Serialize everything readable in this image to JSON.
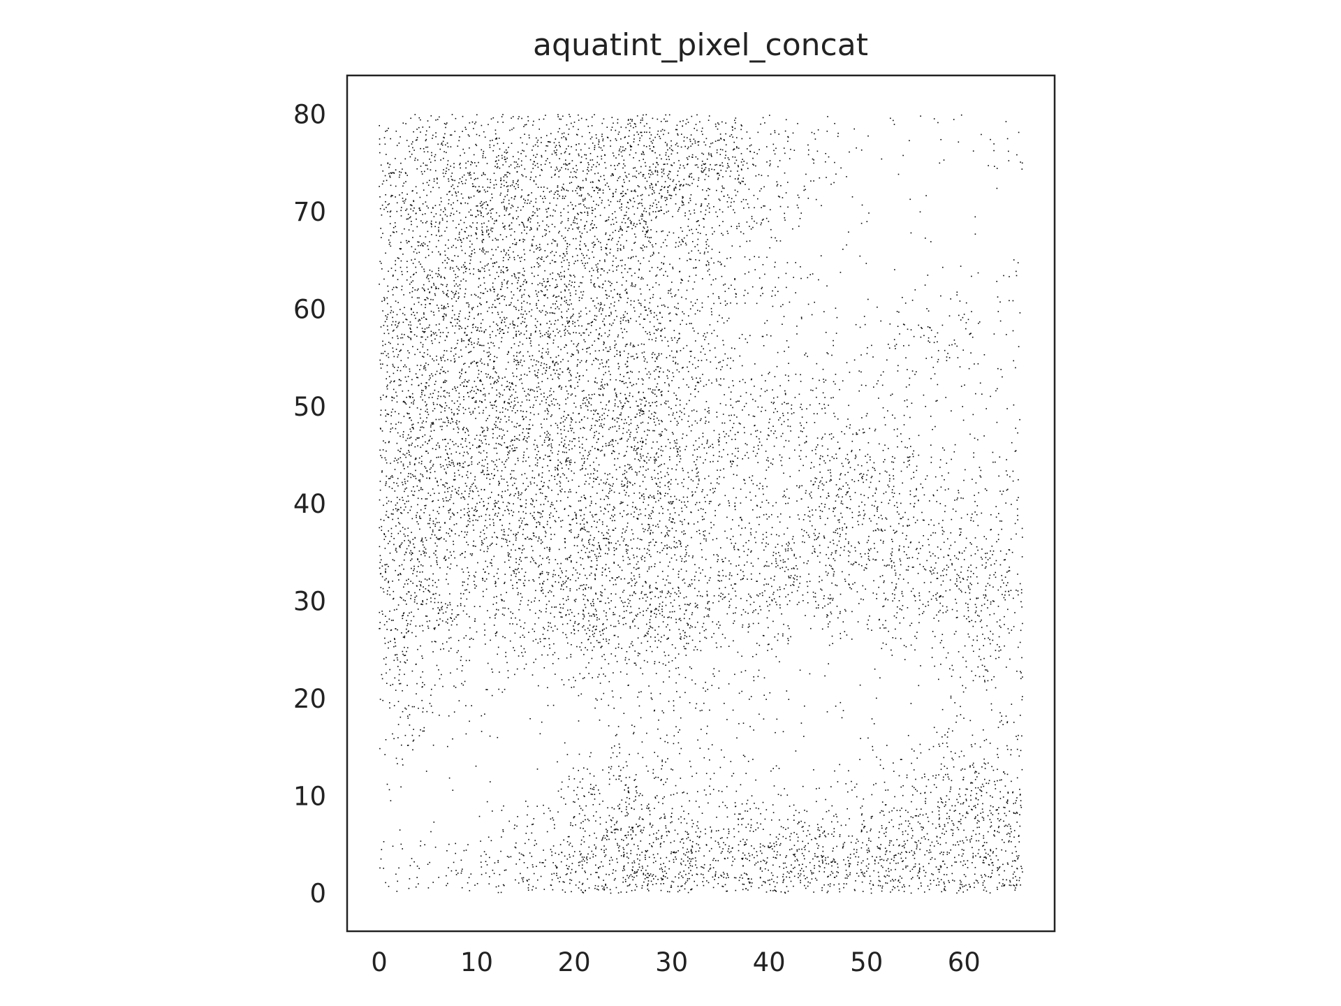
{
  "chart_data": {
    "type": "scatter",
    "title": "aquatint_pixel_concat",
    "xlabel": "",
    "ylabel": "",
    "xlim": [
      -3.3,
      69.3
    ],
    "ylim": [
      -3.9,
      84.0
    ],
    "xticks": [
      0,
      10,
      20,
      30,
      40,
      50,
      60
    ],
    "yticks": [
      0,
      10,
      20,
      30,
      40,
      50,
      60,
      70,
      80
    ],
    "grid": false,
    "legend": "none",
    "point_color": "#000000",
    "frame_color": "#222222",
    "x_extent": [
      0,
      66
    ],
    "y_extent": [
      0,
      80
    ],
    "density_regions": [
      {
        "center": [
          14,
          66
        ],
        "radius": [
          15,
          15
        ],
        "density": "high"
      },
      {
        "center": [
          9,
          46
        ],
        "radius": [
          11,
          12
        ],
        "density": "high"
      },
      {
        "center": [
          23,
          42
        ],
        "radius": [
          12,
          15
        ],
        "density": "high"
      },
      {
        "center": [
          26,
          30
        ],
        "radius": [
          7,
          6
        ],
        "density": "medium"
      },
      {
        "center": [
          30,
          75
        ],
        "radius": [
          10,
          6
        ],
        "density": "high"
      },
      {
        "center": [
          50,
          42
        ],
        "radius": [
          5,
          5
        ],
        "density": "medium"
      },
      {
        "center": [
          60,
          32
        ],
        "radius": [
          9,
          8
        ],
        "density": "medium"
      },
      {
        "center": [
          44,
          33
        ],
        "radius": [
          8,
          6
        ],
        "density": "medium"
      },
      {
        "center": [
          26,
          9
        ],
        "radius": [
          6,
          7
        ],
        "density": "medium"
      },
      {
        "center": [
          40,
          3
        ],
        "radius": [
          30,
          4
        ],
        "density": "high"
      },
      {
        "center": [
          61,
          7
        ],
        "radius": [
          7,
          7
        ],
        "density": "high"
      },
      {
        "center": [
          2,
          30
        ],
        "radius": [
          4,
          10
        ],
        "density": "medium"
      },
      {
        "center": [
          42,
          48
        ],
        "radius": [
          6,
          6
        ],
        "density": "low"
      },
      {
        "center": [
          56,
          58
        ],
        "radius": [
          6,
          5
        ],
        "density": "low"
      }
    ],
    "sparse_regions": [
      {
        "center": [
          7,
          6
        ],
        "radius": [
          8,
          7
        ]
      },
      {
        "center": [
          50,
          22
        ],
        "radius": [
          10,
          8
        ]
      },
      {
        "center": [
          54,
          66
        ],
        "radius": [
          9,
          12
        ]
      },
      {
        "center": [
          20,
          17
        ],
        "radius": [
          10,
          6
        ]
      }
    ]
  }
}
